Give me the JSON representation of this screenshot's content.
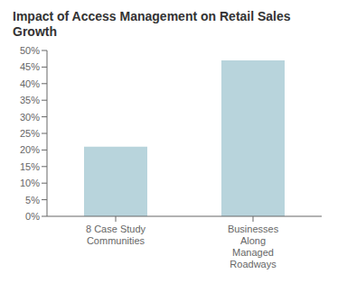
{
  "chart_data": {
    "type": "bar",
    "title": "Impact of Access Management on Retail Sales Growth",
    "categories": [
      "8 Case Study\nCommunities",
      "Businesses\nAlong\nManaged\nRoadways"
    ],
    "values": [
      21,
      47
    ],
    "color": "#b8d4dc",
    "ylim": [
      0,
      50
    ],
    "yticks": [
      {
        "value": 0,
        "label": "0%"
      },
      {
        "value": 5,
        "label": "5%"
      },
      {
        "value": 10,
        "label": "10%"
      },
      {
        "value": 15,
        "label": "15%"
      },
      {
        "value": 20,
        "label": "20%"
      },
      {
        "value": 25,
        "label": "25%"
      },
      {
        "value": 30,
        "label": "30%"
      },
      {
        "value": 35,
        "label": "35%"
      },
      {
        "value": 40,
        "label": "40%"
      },
      {
        "value": 45,
        "label": "45%"
      },
      {
        "value": 50,
        "label": "50%"
      }
    ],
    "grid": false
  }
}
